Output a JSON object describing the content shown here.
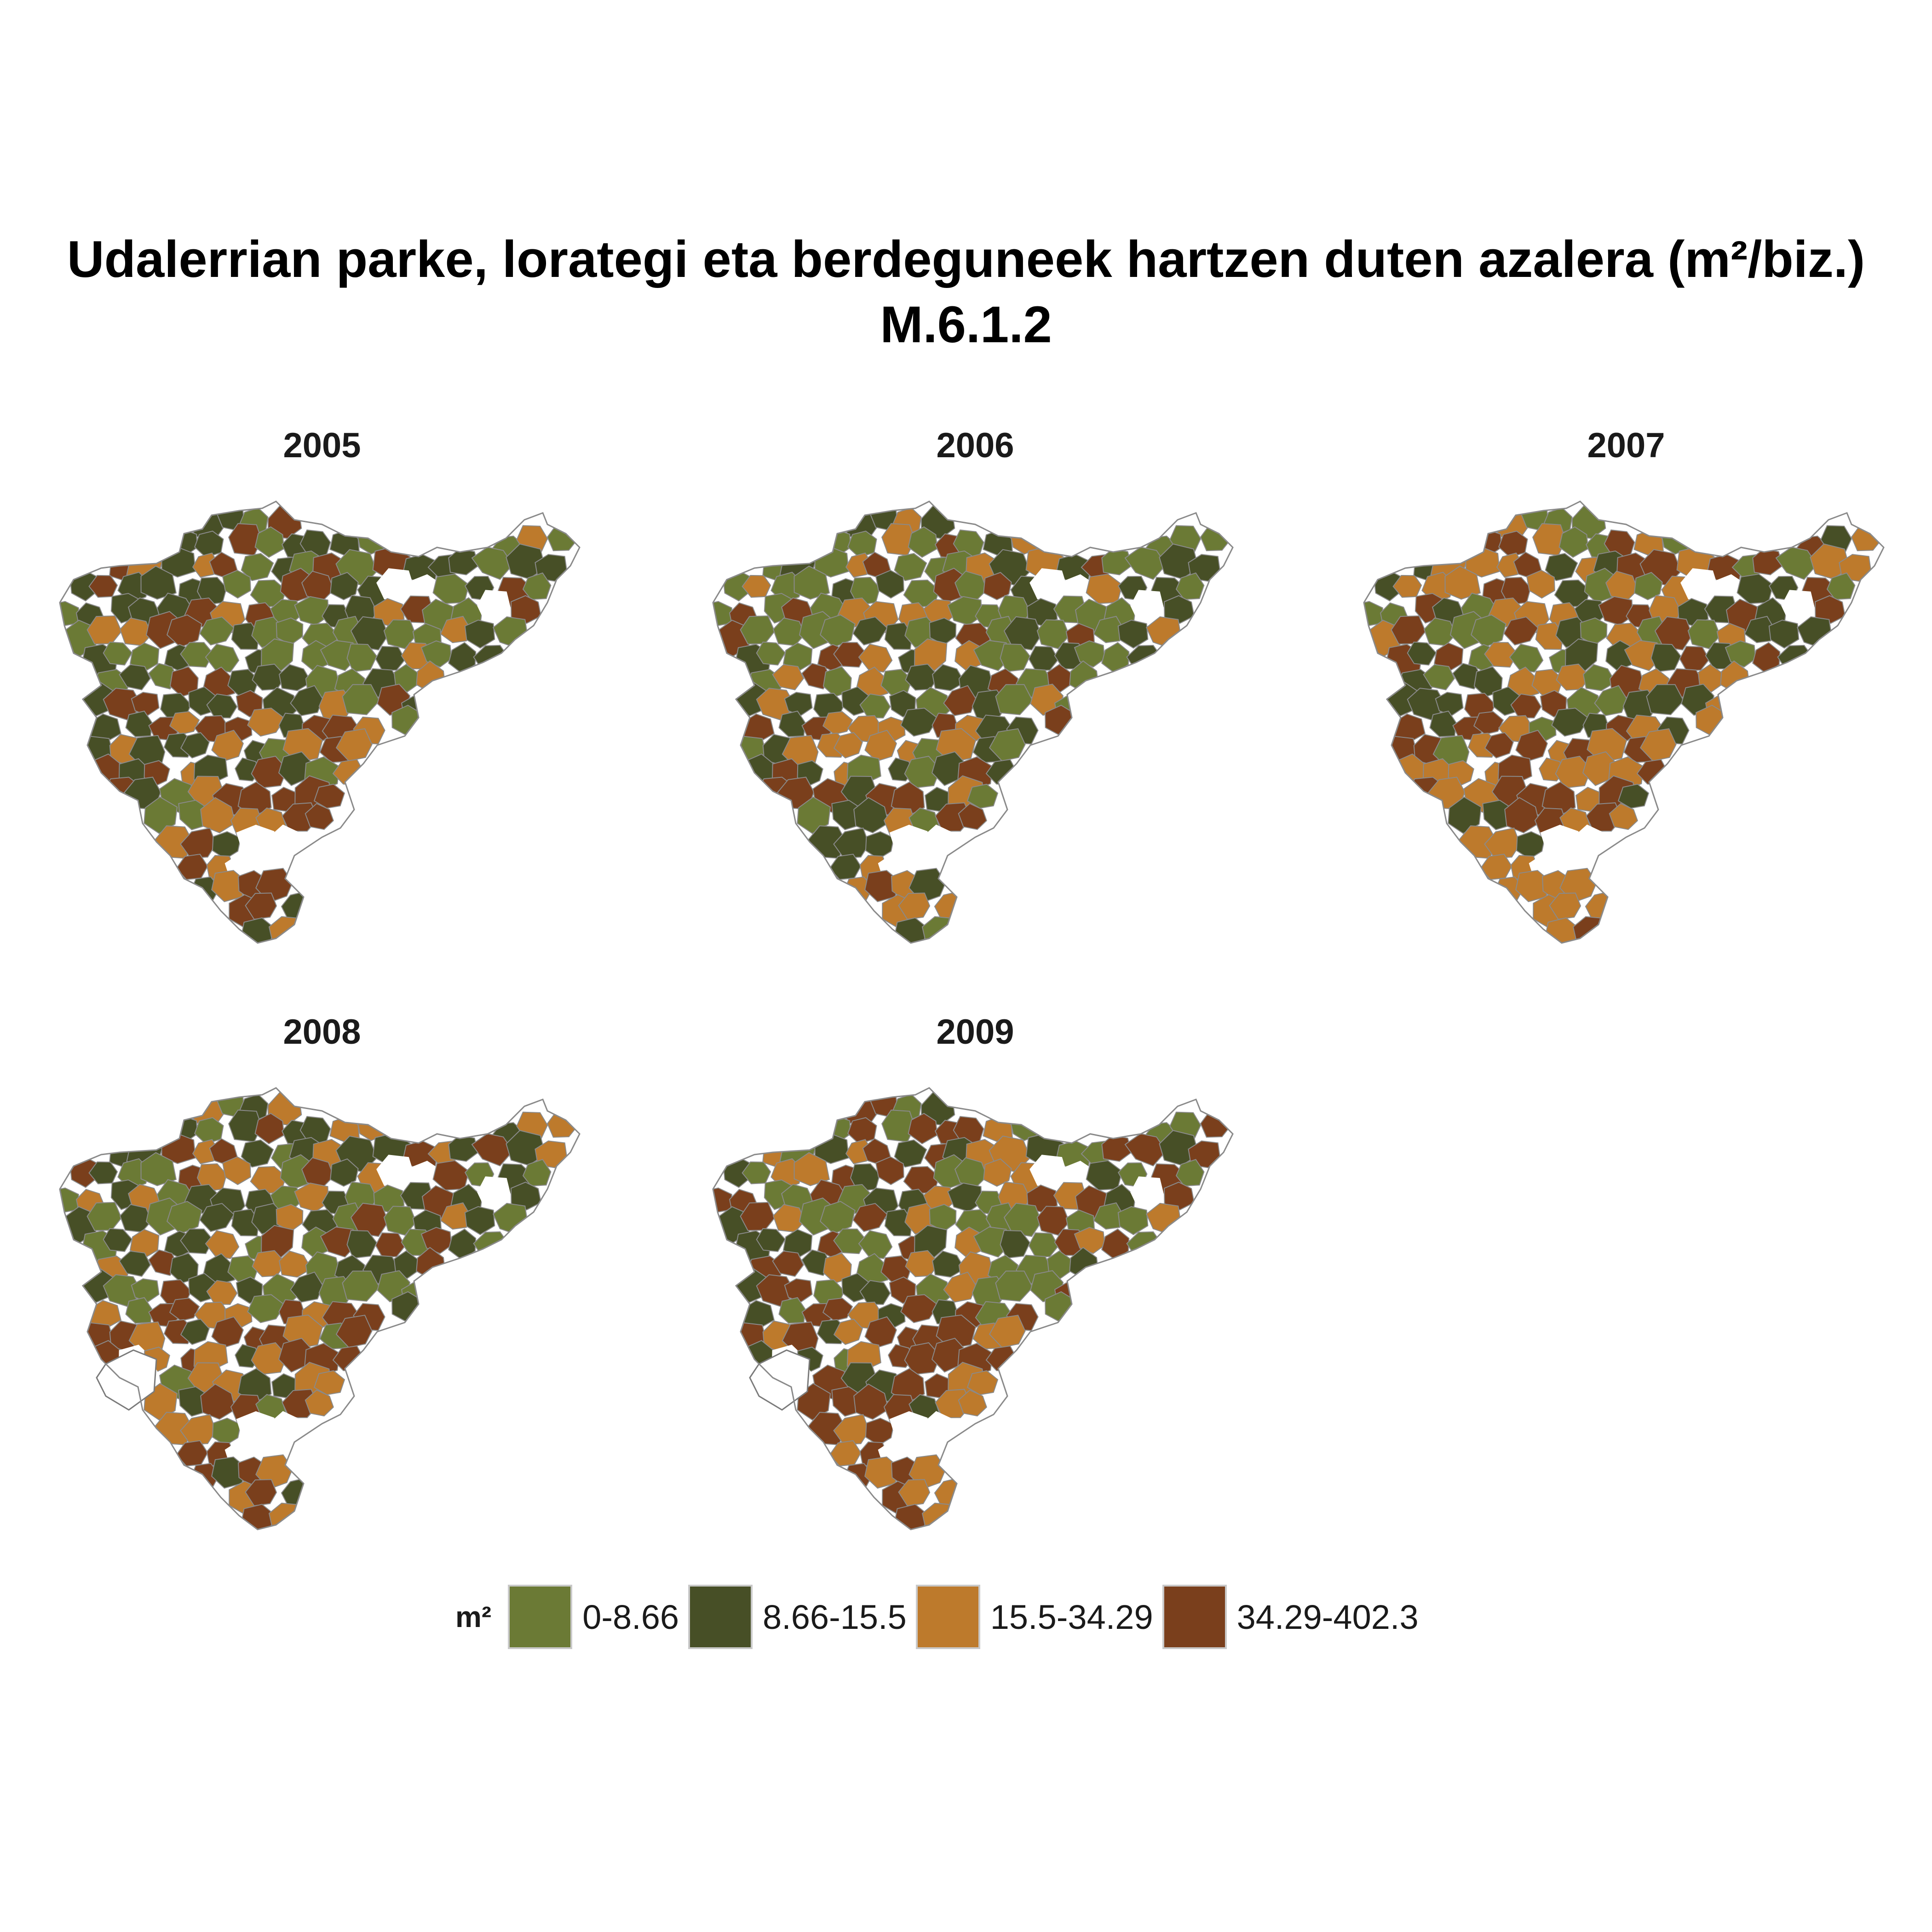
{
  "title": {
    "line1": "Udalerrian parke, lorategi eta berdeguneek hartzen duten azalera (m²/biz.)",
    "line2": "M.6.1.2"
  },
  "facets": [
    {
      "year": "2005"
    },
    {
      "year": "2006"
    },
    {
      "year": "2007"
    },
    {
      "year": "2008"
    },
    {
      "year": "2009"
    }
  ],
  "legend": {
    "title": "m²",
    "items": [
      {
        "label": "0-8.66",
        "color": "#6b7a35"
      },
      {
        "label": "8.66-15.5",
        "color": "#474f26"
      },
      {
        "label": "15.5-34.29",
        "color": "#bd7a2c"
      },
      {
        "label": "34.29-402.3",
        "color": "#7a3f1c"
      }
    ]
  },
  "colors": {
    "border": "#8a8a8a",
    "missing_fill": "#ffffff",
    "missing_border": "#7a7a7a"
  },
  "chart_data": {
    "type": "choropleth",
    "facet_by": "year",
    "years": [
      "2005",
      "2006",
      "2007",
      "2008",
      "2009"
    ],
    "classes": [
      "0-8.66",
      "8.66-15.5",
      "15.5-34.29",
      "34.29-402.3"
    ],
    "legend_position": "bottom"
  }
}
